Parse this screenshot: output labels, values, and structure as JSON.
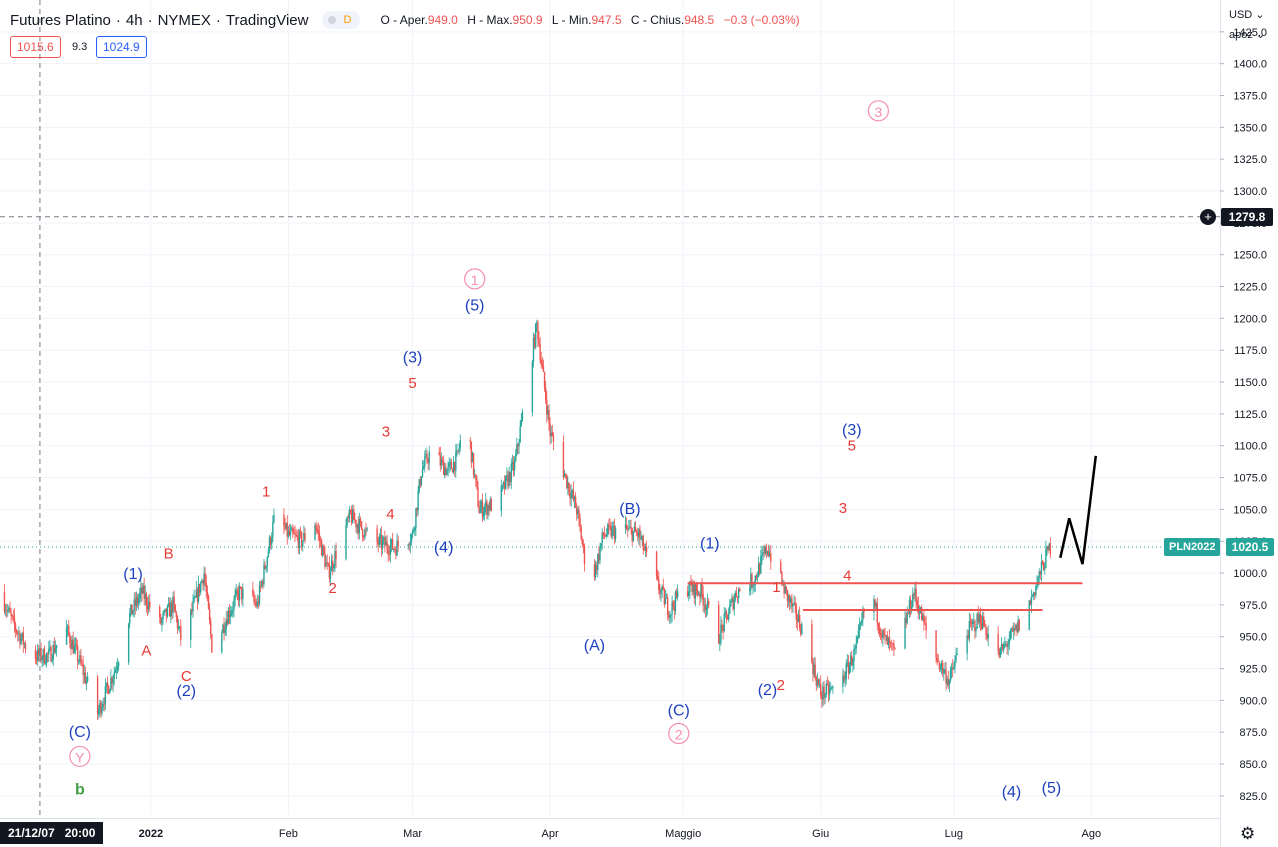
{
  "header": {
    "symbol": "Futures Platino",
    "interval": "4h",
    "exchange": "NYMEX",
    "source": "TradingView",
    "badge": "D",
    "ohlc": {
      "open_label": "O - Aper.",
      "open": "949.0",
      "high_label": "H - Max.",
      "high": "950.9",
      "low_label": "L - Min.",
      "low": "947.5",
      "close_label": "C - Chius.",
      "close": "948.5",
      "change": "−0.3 (−0.03%)"
    },
    "bid": "1015.6",
    "spread": "9.3",
    "ask": "1024.9"
  },
  "axis": {
    "currency": "USD ⌄",
    "scale_mode": "apoz ⌄",
    "crosshair_price": "1279.8",
    "last_price": "1020.5",
    "symbol_tag": "PLN2022",
    "crosshair_date": "21/12/07   20:00",
    "plus": "+",
    "gear": "⚙"
  },
  "colors": {
    "up": "#26a69a",
    "down": "#ef5350",
    "blue_label": "#1e3fbf",
    "red_label": "#e53935",
    "pink_label": "#f48fb1",
    "green_label": "#43a047",
    "level_line": "#ef5350",
    "projection": "#000000"
  },
  "chart_data": {
    "type": "candlestick",
    "y_ticks": [
      825,
      850,
      875,
      900,
      925,
      950,
      975,
      1000,
      1025,
      1050,
      1075,
      1100,
      1125,
      1150,
      1175,
      1200,
      1225,
      1250,
      1275,
      1300,
      1325,
      1350,
      1375,
      1400,
      1425
    ],
    "y_tick_labels": [
      "825.0",
      "850.0",
      "875.0",
      "900.0",
      "925.0",
      "950.0",
      "975.0",
      "1000.0",
      "1025.0",
      "1050.0",
      "1075.0",
      "1100.0",
      "1125.0",
      "1150.0",
      "1175.0",
      "1200.0",
      "1225.0",
      "1250.0",
      "1275.0",
      "1300.0",
      "1325.0",
      "1350.0",
      "1375.0",
      "1400.0",
      "1425.0"
    ],
    "ylim": [
      810,
      1450
    ],
    "x_labels": [
      {
        "label": "2022",
        "date": "2022-01-01"
      },
      {
        "label": "Feb",
        "date": "2022-02-01"
      },
      {
        "label": "Mar",
        "date": "2022-03-01"
      },
      {
        "label": "Apr",
        "date": "2022-04-01"
      },
      {
        "label": "Maggio",
        "date": "2022-05-01"
      },
      {
        "label": "Giu",
        "date": "2022-06-01"
      },
      {
        "label": "Lug",
        "date": "2022-07-01"
      },
      {
        "label": "Ago",
        "date": "2022-08-01"
      }
    ],
    "xlim": [
      "2021-11-28",
      "2022-08-30"
    ],
    "crosshair": {
      "date": "2021-12-07",
      "price": 1279.8
    },
    "last_price": 1020.5,
    "price_path": [
      [
        "2021-11-28",
        985
      ],
      [
        "2021-12-01",
        960
      ],
      [
        "2021-12-05",
        935
      ],
      [
        "2021-12-09",
        935
      ],
      [
        "2021-12-13",
        955
      ],
      [
        "2021-12-16",
        930
      ],
      [
        "2021-12-20",
        890
      ],
      [
        "2021-12-24",
        925
      ],
      [
        "2021-12-27",
        965
      ],
      [
        "2021-12-30",
        985
      ],
      [
        "2022-01-03",
        960
      ],
      [
        "2022-01-06",
        975
      ],
      [
        "2022-01-08",
        945
      ],
      [
        "2022-01-13",
        1000
      ],
      [
        "2022-01-15",
        935
      ],
      [
        "2022-01-18",
        965
      ],
      [
        "2022-01-21",
        985
      ],
      [
        "2022-01-25",
        975
      ],
      [
        "2022-01-29",
        1045
      ],
      [
        "2022-02-01",
        1030
      ],
      [
        "2022-02-04",
        1025
      ],
      [
        "2022-02-07",
        1040
      ],
      [
        "2022-02-10",
        1000
      ],
      [
        "2022-02-15",
        1045
      ],
      [
        "2022-02-20",
        1025
      ],
      [
        "2022-02-25",
        1020
      ],
      [
        "2022-03-01",
        1030
      ],
      [
        "2022-03-03",
        1080
      ],
      [
        "2022-03-05",
        1095
      ],
      [
        "2022-03-09",
        1080
      ],
      [
        "2022-03-11",
        1090
      ],
      [
        "2022-03-13",
        1125
      ],
      [
        "2022-03-16",
        1050
      ],
      [
        "2022-03-20",
        1055
      ],
      [
        "2022-03-24",
        1085
      ],
      [
        "2022-03-27",
        1150
      ],
      [
        "2022-03-29",
        1195
      ],
      [
        "2022-04-01",
        1110
      ],
      [
        "2022-04-04",
        1080
      ],
      [
        "2022-04-07",
        1050
      ],
      [
        "2022-04-10",
        985
      ],
      [
        "2022-04-13",
        1030
      ],
      [
        "2022-04-17",
        1035
      ],
      [
        "2022-04-21",
        1030
      ],
      [
        "2022-04-24",
        1000
      ],
      [
        "2022-04-28",
        970
      ],
      [
        "2022-05-01",
        990
      ],
      [
        "2022-05-05",
        985
      ],
      [
        "2022-05-09",
        950
      ],
      [
        "2022-05-13",
        985
      ],
      [
        "2022-05-17",
        995
      ],
      [
        "2022-05-20",
        1020
      ],
      [
        "2022-05-24",
        985
      ],
      [
        "2022-05-28",
        955
      ],
      [
        "2022-06-01",
        905
      ],
      [
        "2022-06-05",
        910
      ],
      [
        "2022-06-09",
        940
      ],
      [
        "2022-06-12",
        990
      ],
      [
        "2022-06-15",
        950
      ],
      [
        "2022-06-18",
        935
      ],
      [
        "2022-06-22",
        985
      ],
      [
        "2022-06-26",
        940
      ],
      [
        "2022-06-30",
        915
      ],
      [
        "2022-07-03",
        950
      ],
      [
        "2022-07-07",
        965
      ],
      [
        "2022-07-11",
        935
      ],
      [
        "2022-07-15",
        955
      ],
      [
        "2022-07-18",
        975
      ],
      [
        "2022-07-22",
        1015
      ],
      [
        "2022-07-24",
        1030
      ]
    ],
    "horizontal_levels": [
      {
        "price": 992,
        "from": "2022-05-02",
        "to": "2022-07-30"
      },
      {
        "price": 971,
        "from": "2022-05-28",
        "to": "2022-07-21"
      }
    ],
    "projection": [
      [
        "2022-07-25",
        1012
      ],
      [
        "2022-07-27",
        1043
      ],
      [
        "2022-07-30",
        1007
      ],
      [
        "2022-08-02",
        1092
      ]
    ],
    "annotations": [
      {
        "text": "(1)",
        "date": "2021-12-28",
        "price": 1000,
        "color": "blue"
      },
      {
        "text": "B",
        "date": "2022-01-05",
        "price": 1016,
        "color": "red"
      },
      {
        "text": "A",
        "date": "2021-12-31",
        "price": 940,
        "color": "red"
      },
      {
        "text": "C",
        "date": "2022-01-09",
        "price": 920,
        "color": "red"
      },
      {
        "text": "(2)",
        "date": "2022-01-09",
        "price": 908,
        "color": "blue"
      },
      {
        "text": "(C)",
        "date": "2021-12-16",
        "price": 876,
        "color": "blue"
      },
      {
        "text": "Y",
        "date": "2021-12-16",
        "price": 856,
        "color": "pink",
        "circle": true
      },
      {
        "text": "b",
        "date": "2021-12-16",
        "price": 831,
        "color": "green"
      },
      {
        "text": "1",
        "date": "2022-01-27",
        "price": 1065,
        "color": "red"
      },
      {
        "text": "2",
        "date": "2022-02-11",
        "price": 989,
        "color": "red"
      },
      {
        "text": "3",
        "date": "2022-02-23",
        "price": 1112,
        "color": "red"
      },
      {
        "text": "4",
        "date": "2022-02-24",
        "price": 1047,
        "color": "red"
      },
      {
        "text": "5",
        "date": "2022-03-01",
        "price": 1150,
        "color": "red"
      },
      {
        "text": "(3)",
        "date": "2022-03-01",
        "price": 1170,
        "color": "blue"
      },
      {
        "text": "(4)",
        "date": "2022-03-08",
        "price": 1021,
        "color": "blue"
      },
      {
        "text": "(5)",
        "date": "2022-03-15",
        "price": 1211,
        "color": "blue"
      },
      {
        "text": "1",
        "date": "2022-03-15",
        "price": 1231,
        "color": "pink",
        "circle": true
      },
      {
        "text": "(A)",
        "date": "2022-04-11",
        "price": 944,
        "color": "blue"
      },
      {
        "text": "(B)",
        "date": "2022-04-19",
        "price": 1051,
        "color": "blue"
      },
      {
        "text": "(C)",
        "date": "2022-04-30",
        "price": 893,
        "color": "blue"
      },
      {
        "text": "2",
        "date": "2022-04-30",
        "price": 874,
        "color": "pink",
        "circle": true
      },
      {
        "text": "(1)",
        "date": "2022-05-07",
        "price": 1024,
        "color": "blue"
      },
      {
        "text": "1",
        "date": "2022-05-22",
        "price": 990,
        "color": "red"
      },
      {
        "text": "(2)",
        "date": "2022-05-20",
        "price": 909,
        "color": "blue"
      },
      {
        "text": "2",
        "date": "2022-05-23",
        "price": 913,
        "color": "red"
      },
      {
        "text": "3",
        "date": "2022-06-06",
        "price": 1052,
        "color": "red"
      },
      {
        "text": "4",
        "date": "2022-06-07",
        "price": 999,
        "color": "red"
      },
      {
        "text": "(3)",
        "date": "2022-06-08",
        "price": 1113,
        "color": "blue"
      },
      {
        "text": "5",
        "date": "2022-06-08",
        "price": 1101,
        "color": "red"
      },
      {
        "text": "3",
        "date": "2022-06-14",
        "price": 1363,
        "color": "pink",
        "circle": true
      },
      {
        "text": "(4)",
        "date": "2022-07-14",
        "price": 829,
        "color": "blue"
      },
      {
        "text": "(5)",
        "date": "2022-07-23",
        "price": 832,
        "color": "blue"
      }
    ]
  }
}
